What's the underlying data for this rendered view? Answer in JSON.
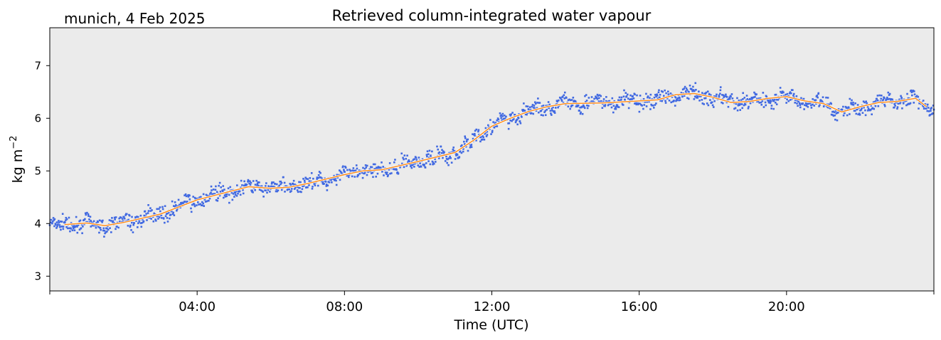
{
  "header": {
    "site_date": "munich, 4 Feb 2025"
  },
  "chart_data": {
    "type": "scatter",
    "title": "Retrieved column-integrated water vapour",
    "xlabel": "Time (UTC)",
    "ylabel": "kg m",
    "ylabel_sup": "−2",
    "xlim_hours": [
      0,
      24
    ],
    "ylim": [
      2.72,
      7.72
    ],
    "x_ticks": [
      {
        "hour": 4,
        "label": "04:00"
      },
      {
        "hour": 8,
        "label": "08:00"
      },
      {
        "hour": 12,
        "label": "12:00"
      },
      {
        "hour": 16,
        "label": "16:00"
      },
      {
        "hour": 20,
        "label": "20:00"
      }
    ],
    "x_minor_ticks_hours": [
      0,
      24
    ],
    "y_ticks": [
      3,
      4,
      5,
      6,
      7
    ],
    "grid": false,
    "background_color": "#ebebeb",
    "series": [
      {
        "style": "scatter-points",
        "color": "#4169e1",
        "spread": 0.18
      },
      {
        "style": "smoothed-line",
        "color": "#ff8c1a",
        "x_hours": [
          0.4,
          1.0,
          1.2,
          1.5,
          2.0,
          3.0,
          4.0,
          5.0,
          5.4,
          6.0,
          6.5,
          7.0,
          8.0,
          8.5,
          9.0,
          10.0,
          11.0,
          11.5,
          12.0,
          12.5,
          13.0,
          13.5,
          14.0,
          15.0,
          16.0,
          16.5,
          17.0,
          17.5,
          18.0,
          18.5,
          19.0,
          19.5,
          20.0,
          20.5,
          21.0,
          21.5,
          22.0,
          22.5,
          23.0,
          23.5,
          23.8
        ],
        "values": [
          3.98,
          4.01,
          3.99,
          3.96,
          4.02,
          4.18,
          4.45,
          4.63,
          4.7,
          4.67,
          4.69,
          4.76,
          4.93,
          5.0,
          5.02,
          5.18,
          5.35,
          5.58,
          5.85,
          6.0,
          6.13,
          6.22,
          6.28,
          6.29,
          6.33,
          6.35,
          6.45,
          6.47,
          6.4,
          6.3,
          6.32,
          6.38,
          6.41,
          6.33,
          6.28,
          6.12,
          6.22,
          6.3,
          6.32,
          6.38,
          6.22
        ]
      }
    ]
  }
}
